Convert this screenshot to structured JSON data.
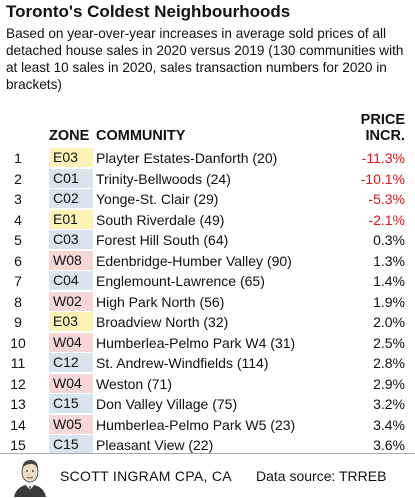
{
  "header": {
    "title": "Toronto's Coldest Neighbourhoods",
    "subtitle": "Based on year-over-year increases in average sold prices of all detached house sales in 2020 versus 2019 (130 communities with at least 10 sales in 2020, sales transaction numbers for 2020 in brackets)"
  },
  "columns": {
    "zone": "ZONE",
    "community": "COMMUNITY",
    "price_line1": "PRICE",
    "price_line2": "INCR."
  },
  "footer": {
    "author": "SCOTT INGRAM CPA, CA",
    "source": "Data source: TRREB"
  },
  "colors": {
    "zone_E": "#fdf3b6",
    "zone_C": "#d8e4f0",
    "zone_W": "#f6d7d7",
    "negative": "#e3141b"
  },
  "chart_data": {
    "type": "table",
    "title": "Toronto's Coldest Neighbourhoods",
    "rows": [
      {
        "rank": "1",
        "zone": "E03",
        "community": "Playter Estates-Danforth (20)",
        "pct": "-11.3%",
        "value": -11.3
      },
      {
        "rank": "2",
        "zone": "C01",
        "community": "Trinity-Bellwoods (24)",
        "pct": "-10.1%",
        "value": -10.1
      },
      {
        "rank": "3",
        "zone": "C02",
        "community": "Yonge-St. Clair (29)",
        "pct": "-5.3%",
        "value": -5.3
      },
      {
        "rank": "4",
        "zone": "E01",
        "community": "South Riverdale (49)",
        "pct": "-2.1%",
        "value": -2.1
      },
      {
        "rank": "5",
        "zone": "C03",
        "community": "Forest Hill South (64)",
        "pct": "0.3%",
        "value": 0.3
      },
      {
        "rank": "6",
        "zone": "W08",
        "community": "Edenbridge-Humber Valley (90)",
        "pct": "1.3%",
        "value": 1.3
      },
      {
        "rank": "7",
        "zone": "C04",
        "community": "Englemount-Lawrence (65)",
        "pct": "1.4%",
        "value": 1.4
      },
      {
        "rank": "8",
        "zone": "W02",
        "community": "High Park North (56)",
        "pct": "1.9%",
        "value": 1.9
      },
      {
        "rank": "9",
        "zone": "E03",
        "community": "Broadview North (32)",
        "pct": "2.0%",
        "value": 2.0
      },
      {
        "rank": "10",
        "zone": "W04",
        "community": "Humberlea-Pelmo Park W4 (31)",
        "pct": "2.5%",
        "value": 2.5
      },
      {
        "rank": "11",
        "zone": "C12",
        "community": "St. Andrew-Windfields (114)",
        "pct": "2.8%",
        "value": 2.8
      },
      {
        "rank": "12",
        "zone": "W04",
        "community": "Weston (71)",
        "pct": "2.9%",
        "value": 2.9
      },
      {
        "rank": "13",
        "zone": "C15",
        "community": "Don Valley Village (75)",
        "pct": "3.2%",
        "value": 3.2
      },
      {
        "rank": "14",
        "zone": "W05",
        "community": "Humberlea-Pelmo Park W5 (23)",
        "pct": "3.4%",
        "value": 3.4
      },
      {
        "rank": "15",
        "zone": "C15",
        "community": "Pleasant View (22)",
        "pct": "3.6%",
        "value": 3.6
      }
    ]
  }
}
